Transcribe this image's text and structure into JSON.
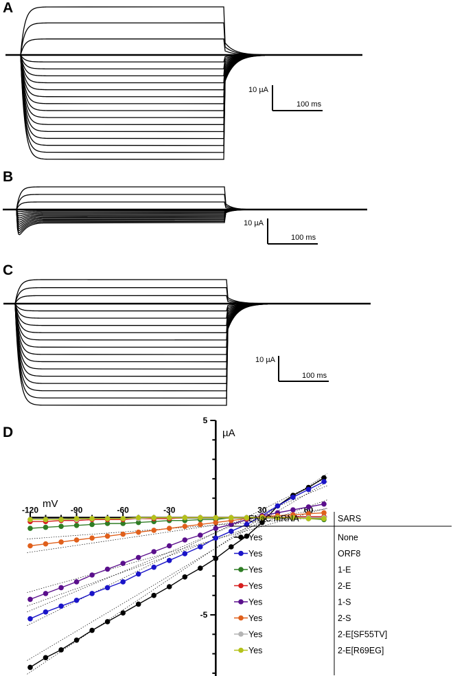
{
  "panels": [
    {
      "letter": "A",
      "scale_current": "10 µA",
      "scale_time": "100 ms",
      "traces_above_baseline": 3,
      "traces_below_baseline": 15
    },
    {
      "letter": "B",
      "scale_current": "10 µA",
      "scale_time": "100 ms",
      "traces_above_baseline": 3,
      "traces_below_baseline": 12
    },
    {
      "letter": "C",
      "scale_current": "10 µA",
      "scale_time": "100 ms",
      "traces_above_baseline": 3,
      "traces_below_baseline": 14
    }
  ],
  "chart_data": {
    "type": "scatter",
    "panel_letter": "D",
    "xlabel": "mV",
    "ylabel": "µA",
    "xlim": [
      -120,
      70
    ],
    "ylim": [
      -8.5,
      5
    ],
    "x_ticks": [
      -120,
      -90,
      -60,
      -30,
      30,
      60
    ],
    "y_tick_labels": [
      5,
      -5
    ],
    "x": [
      -120,
      -110,
      -100,
      -90,
      -80,
      -70,
      -60,
      -50,
      -40,
      -30,
      -20,
      -10,
      0,
      10,
      20,
      30,
      40,
      50,
      60,
      70
    ],
    "series": [
      {
        "name": "None",
        "enac": "Yes",
        "color": "#000000",
        "values": [
          -7.7,
          -7.2,
          -6.8,
          -6.3,
          -5.8,
          -5.35,
          -4.9,
          -4.45,
          -4.0,
          -3.55,
          -3.05,
          -2.6,
          -2.1,
          -1.5,
          -0.95,
          -0.25,
          0.6,
          1.15,
          1.55,
          2.05
        ]
      },
      {
        "name": "ORF8",
        "enac": "Yes",
        "color": "#1a14c8",
        "values": [
          -5.2,
          -4.85,
          -4.55,
          -4.25,
          -3.9,
          -3.6,
          -3.3,
          -2.9,
          -2.55,
          -2.2,
          -1.85,
          -1.5,
          -1.05,
          -0.7,
          -0.35,
          0.1,
          0.6,
          1.05,
          1.45,
          1.85
        ]
      },
      {
        "name": "1-E",
        "enac": "Yes",
        "color": "#2f7d25",
        "values": [
          -0.55,
          -0.5,
          -0.45,
          -0.4,
          -0.35,
          -0.3,
          -0.3,
          -0.25,
          -0.2,
          -0.15,
          -0.15,
          -0.1,
          -0.1,
          0.0,
          0.0,
          0.0,
          0.0,
          0.0,
          -0.05,
          -0.1
        ]
      },
      {
        "name": "2-E",
        "enac": "Yes",
        "color": "#d61e1e",
        "values": [
          -0.2,
          -0.2,
          -0.15,
          -0.15,
          -0.1,
          -0.1,
          -0.1,
          -0.05,
          -0.05,
          -0.05,
          0.0,
          0.0,
          0.0,
          0.0,
          0.0,
          0.0,
          0.0,
          0.05,
          0.05,
          0.05
        ]
      },
      {
        "name": "1-S",
        "enac": "Yes",
        "color": "#5a0f8c",
        "values": [
          -4.2,
          -3.9,
          -3.6,
          -3.3,
          -2.95,
          -2.65,
          -2.35,
          -2.05,
          -1.75,
          -1.45,
          -1.15,
          -0.9,
          -0.55,
          -0.35,
          -0.1,
          0.1,
          0.25,
          0.4,
          0.55,
          0.7
        ]
      },
      {
        "name": "2-S",
        "enac": "Yes",
        "color": "#e0601c",
        "values": [
          -1.45,
          -1.35,
          -1.25,
          -1.15,
          -1.05,
          -0.95,
          -0.85,
          -0.75,
          -0.65,
          -0.55,
          -0.45,
          -0.35,
          -0.25,
          -0.15,
          -0.05,
          0.05,
          0.1,
          0.15,
          0.2,
          0.25
        ]
      },
      {
        "name": "2-E[SF55TV]",
        "enac": "Yes",
        "color": "#b4b4b4",
        "values": [
          -0.1,
          -0.1,
          -0.1,
          -0.1,
          -0.05,
          -0.05,
          -0.05,
          -0.05,
          0.0,
          0.0,
          0.0,
          0.0,
          0.0,
          0.0,
          0.0,
          0.0,
          0.0,
          0.0,
          0.0,
          0.0
        ]
      },
      {
        "name": "2-E[R69EG]",
        "enac": "Yes",
        "color": "#b4c21a",
        "values": [
          -0.1,
          -0.1,
          -0.1,
          -0.05,
          -0.05,
          -0.05,
          -0.05,
          0.0,
          0.0,
          0.0,
          0.0,
          0.0,
          0.0,
          0.0,
          0.0,
          0.0,
          0.0,
          0.0,
          -0.05,
          -0.05
        ]
      }
    ],
    "legend": {
      "header_left": "ENaC mRNA",
      "header_right": "SARS",
      "placement": "bottom-right"
    }
  }
}
